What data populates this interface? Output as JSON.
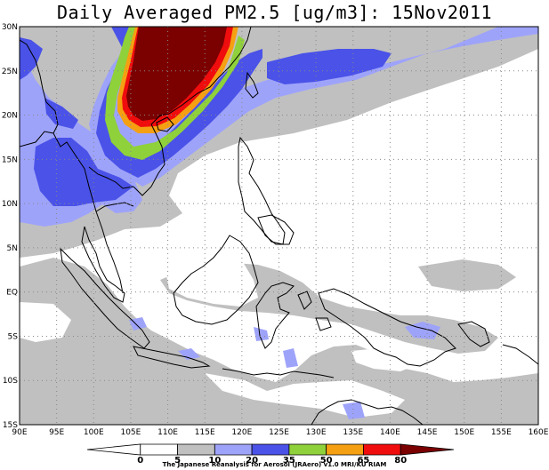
{
  "title": "Daily Averaged PM2.5 [ug/m3]: 15Nov2011",
  "credit": "The Japanese Reanalysis for Aerosol (JRAero) v1.0 MRI/KU RIAM",
  "colors": {
    "c0": "#ffffff",
    "c5": "#ffffff",
    "c10": "#c0c0c0",
    "c20": "#9ea3fa",
    "c35": "#4a52e8",
    "c50": "#8fd13a",
    "c65": "#f5a012",
    "c80": "#f00d0d",
    "c80plus": "#7b0000",
    "land": "#000000",
    "grid": "#888888"
  },
  "map": {
    "lon_min": 90,
    "lon_max": 160,
    "lat_min": -15,
    "lat_max": 30,
    "lon_ticks": [
      {
        "v": 90,
        "label": "90E"
      },
      {
        "v": 95,
        "label": "95E"
      },
      {
        "v": 100,
        "label": "100E"
      },
      {
        "v": 105,
        "label": "105E"
      },
      {
        "v": 110,
        "label": "110E"
      },
      {
        "v": 115,
        "label": "115E"
      },
      {
        "v": 120,
        "label": "120E"
      },
      {
        "v": 125,
        "label": "125E"
      },
      {
        "v": 130,
        "label": "130E"
      },
      {
        "v": 135,
        "label": "135E"
      },
      {
        "v": 140,
        "label": "140E"
      },
      {
        "v": 145,
        "label": "145E"
      },
      {
        "v": 150,
        "label": "150E"
      },
      {
        "v": 155,
        "label": "155E"
      },
      {
        "v": 160,
        "label": "160E"
      }
    ],
    "lat_ticks": [
      {
        "v": 30,
        "label": "30N"
      },
      {
        "v": 25,
        "label": "25N"
      },
      {
        "v": 20,
        "label": "20N"
      },
      {
        "v": 15,
        "label": "15N"
      },
      {
        "v": 10,
        "label": "10N"
      },
      {
        "v": 5,
        "label": "5N"
      },
      {
        "v": 0,
        "label": "EQ"
      },
      {
        "v": -5,
        "label": "5S"
      },
      {
        "v": -10,
        "label": "10S"
      },
      {
        "v": -15,
        "label": "15S"
      }
    ]
  },
  "colorbar": {
    "labels": [
      "0",
      "5",
      "10",
      "20",
      "35",
      "50",
      "65",
      "80"
    ],
    "colors": [
      "#ffffff",
      "#ffffff",
      "#c0c0c0",
      "#9ea3fa",
      "#4a52e8",
      "#8fd13a",
      "#f5a012",
      "#f00d0d",
      "#7b0000"
    ]
  }
}
